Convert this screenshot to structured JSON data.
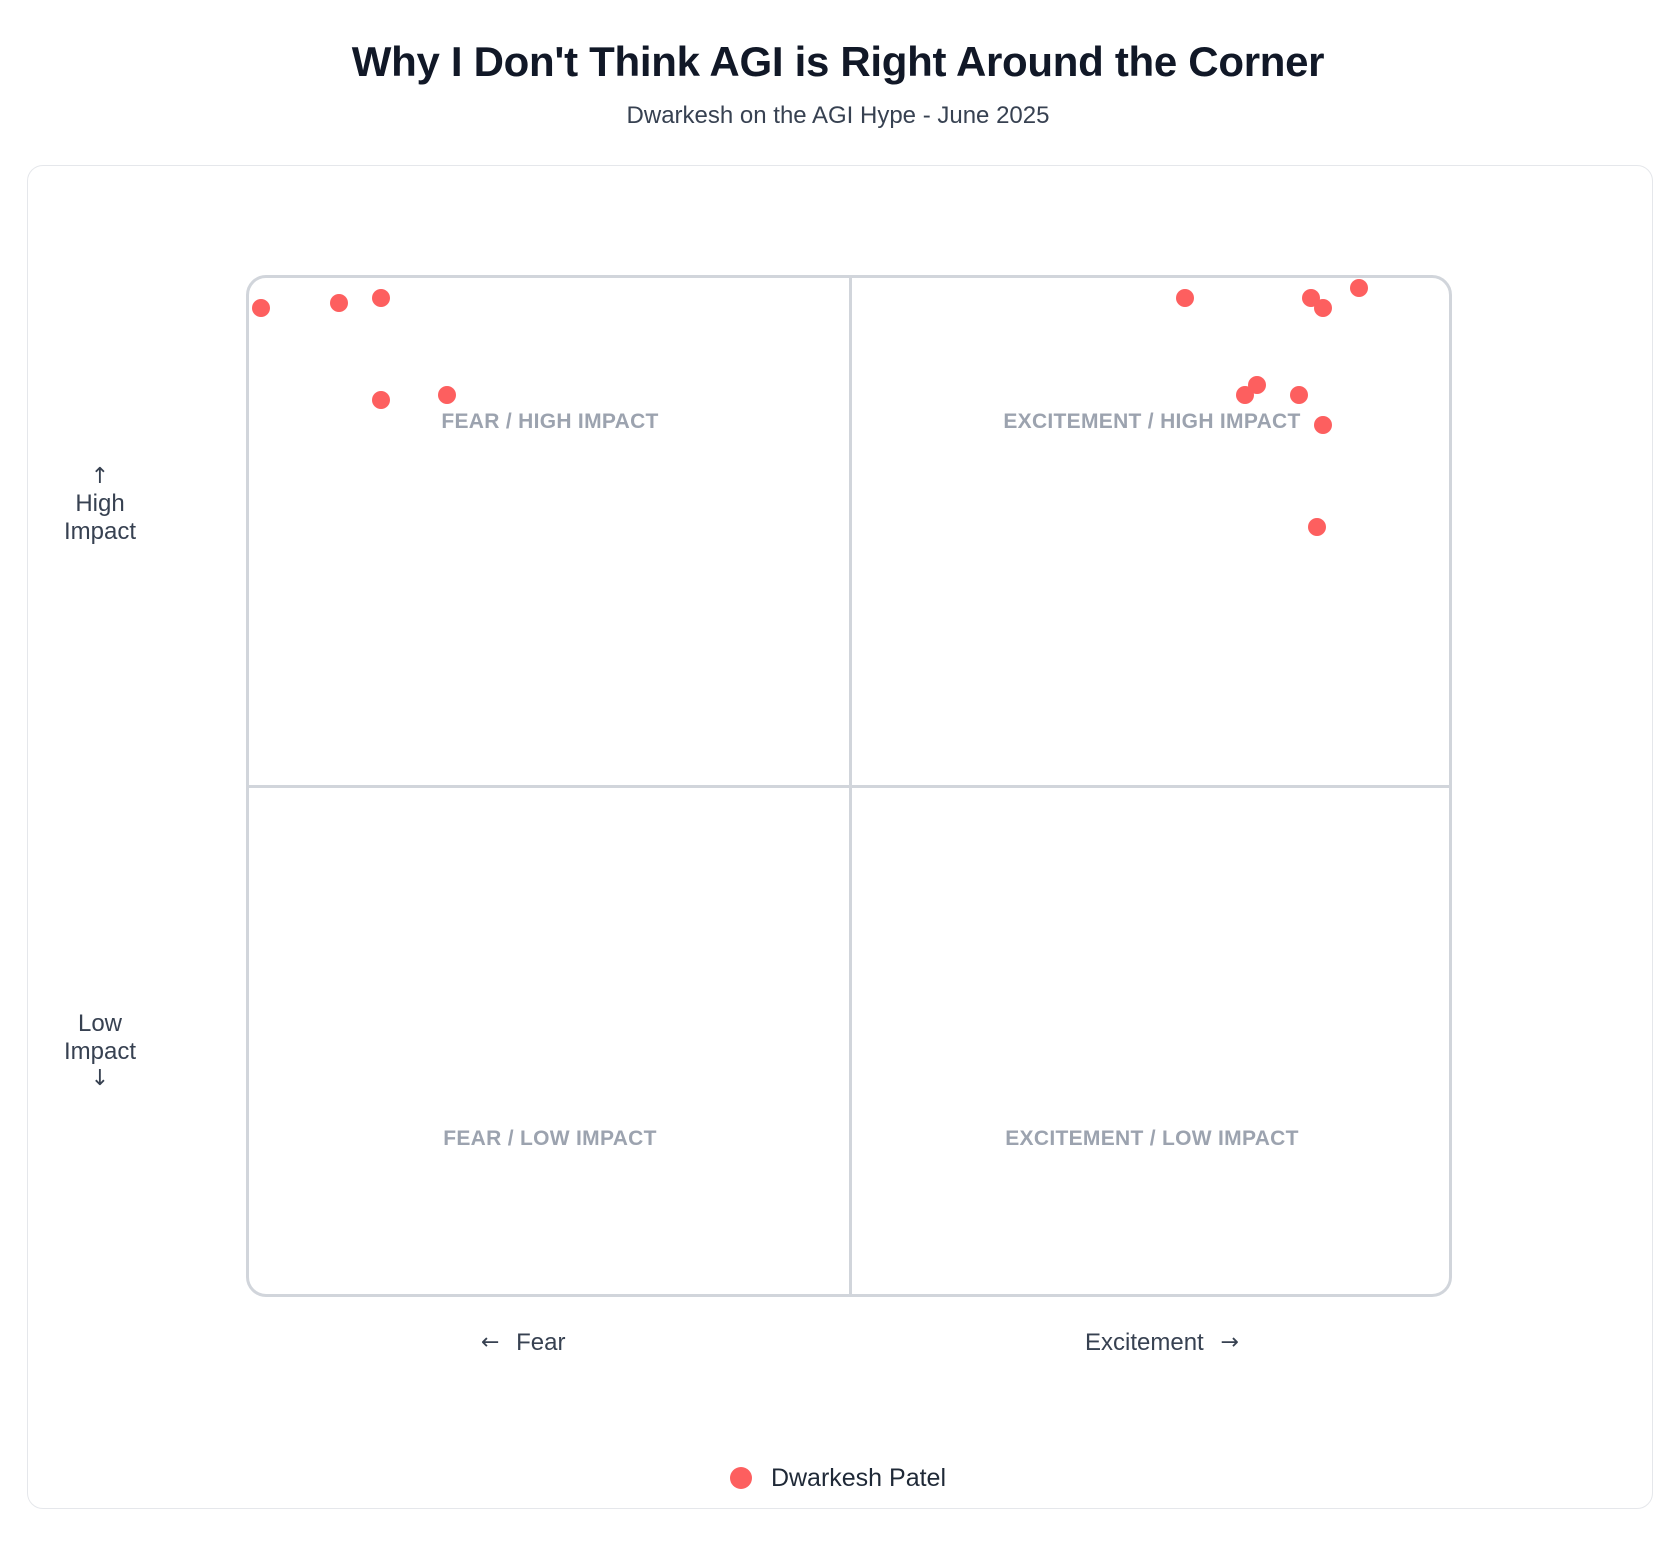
{
  "title": "Why I Don't Think AGI is Right Around the Corner",
  "subtitle": "Dwarkesh on the AGI Hype - June 2025",
  "colors": {
    "point": "#fd5f5f"
  },
  "chart_data": {
    "type": "scatter",
    "quadrants": {
      "top_left": "FEAR / HIGH IMPACT",
      "top_right": "EXCITEMENT / HIGH IMPACT",
      "bottom_left": "FEAR / LOW IMPACT",
      "bottom_right": "EXCITEMENT / LOW IMPACT"
    },
    "axes": {
      "x_negative": "Fear",
      "x_positive": "Excitement",
      "y_positive_line1": "High",
      "y_positive_line2": "Impact",
      "y_negative_line1": "Low",
      "y_negative_line2": "Impact",
      "xlim": [
        -100,
        100
      ],
      "ylim": [
        -100,
        100
      ]
    },
    "series": [
      {
        "name": "Dwarkesh Patel",
        "points": [
          {
            "x": -98,
            "y": 94
          },
          {
            "x": -85,
            "y": 95
          },
          {
            "x": -78,
            "y": 96
          },
          {
            "x": -78,
            "y": 76
          },
          {
            "x": -67,
            "y": 77
          },
          {
            "x": 56,
            "y": 96
          },
          {
            "x": 77,
            "y": 96
          },
          {
            "x": 79,
            "y": 94
          },
          {
            "x": 85,
            "y": 98
          },
          {
            "x": 68,
            "y": 79
          },
          {
            "x": 66,
            "y": 77
          },
          {
            "x": 75,
            "y": 77
          },
          {
            "x": 79,
            "y": 71
          },
          {
            "x": 78,
            "y": 51
          }
        ]
      }
    ]
  }
}
